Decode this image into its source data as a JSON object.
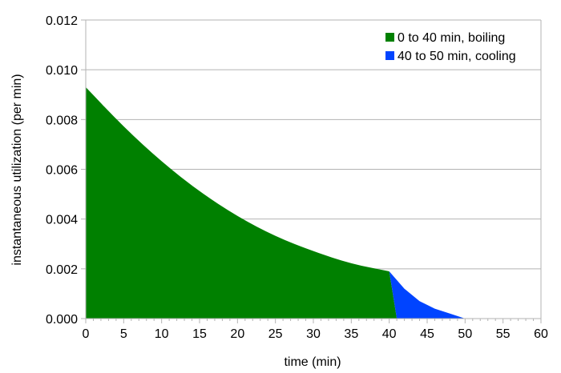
{
  "chart_data": {
    "type": "area",
    "xlabel": "time (min)",
    "ylabel": "instantaneous utilization (per min)",
    "xlim": [
      0,
      60
    ],
    "ylim": [
      0,
      0.012
    ],
    "x_ticks": [
      "0",
      "5",
      "10",
      "15",
      "20",
      "25",
      "30",
      "35",
      "40",
      "45",
      "50",
      "55",
      "60"
    ],
    "y_ticks": [
      "0.000",
      "0.002",
      "0.004",
      "0.006",
      "0.008",
      "0.010",
      "0.012"
    ],
    "grid": "horizontal",
    "legend_position": "top-right",
    "series": [
      {
        "name": "0 to 40 min, boiling",
        "color": "#008000",
        "x": [
          0,
          5,
          10,
          15,
          20,
          25,
          30,
          35,
          40,
          41
        ],
        "y": [
          0.0093,
          0.0077,
          0.0063,
          0.0051,
          0.0041,
          0.0033,
          0.0027,
          0.0022,
          0.0019,
          0.0
        ]
      },
      {
        "name": "40 to 50 min, cooling",
        "color": "#0044ff",
        "x": [
          40,
          42,
          44,
          46,
          48,
          50,
          41
        ],
        "y": [
          0.0019,
          0.0012,
          0.0007,
          0.0004,
          0.0002,
          0.0,
          0.0
        ]
      }
    ]
  }
}
